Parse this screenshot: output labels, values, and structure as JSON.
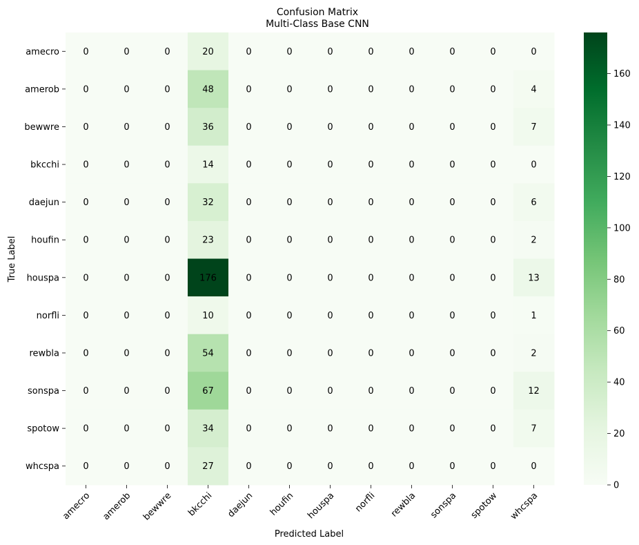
{
  "chart_data": {
    "type": "heatmap",
    "title": "Confusion Matrix",
    "subtitle": "Multi-Class Base CNN",
    "xlabel": "Predicted Label",
    "ylabel": "True Label",
    "x_categories": [
      "amecro",
      "amerob",
      "bewwre",
      "bkcchi",
      "daejun",
      "houfin",
      "houspa",
      "norfli",
      "rewbla",
      "sonspa",
      "spotow",
      "whcspa"
    ],
    "y_categories": [
      "amecro",
      "amerob",
      "bewwre",
      "bkcchi",
      "daejun",
      "houfin",
      "houspa",
      "norfli",
      "rewbla",
      "sonspa",
      "spotow",
      "whcspa"
    ],
    "values": [
      [
        0,
        0,
        0,
        20,
        0,
        0,
        0,
        0,
        0,
        0,
        0,
        0
      ],
      [
        0,
        0,
        0,
        48,
        0,
        0,
        0,
        0,
        0,
        0,
        0,
        4
      ],
      [
        0,
        0,
        0,
        36,
        0,
        0,
        0,
        0,
        0,
        0,
        0,
        7
      ],
      [
        0,
        0,
        0,
        14,
        0,
        0,
        0,
        0,
        0,
        0,
        0,
        0
      ],
      [
        0,
        0,
        0,
        32,
        0,
        0,
        0,
        0,
        0,
        0,
        0,
        6
      ],
      [
        0,
        0,
        0,
        23,
        0,
        0,
        0,
        0,
        0,
        0,
        0,
        2
      ],
      [
        0,
        0,
        0,
        176,
        0,
        0,
        0,
        0,
        0,
        0,
        0,
        13
      ],
      [
        0,
        0,
        0,
        10,
        0,
        0,
        0,
        0,
        0,
        0,
        0,
        1
      ],
      [
        0,
        0,
        0,
        54,
        0,
        0,
        0,
        0,
        0,
        0,
        0,
        2
      ],
      [
        0,
        0,
        0,
        67,
        0,
        0,
        0,
        0,
        0,
        0,
        0,
        12
      ],
      [
        0,
        0,
        0,
        34,
        0,
        0,
        0,
        0,
        0,
        0,
        0,
        7
      ],
      [
        0,
        0,
        0,
        27,
        0,
        0,
        0,
        0,
        0,
        0,
        0,
        0
      ]
    ],
    "colorbar": {
      "min": 0,
      "max": 176,
      "ticks": [
        0,
        20,
        40,
        60,
        80,
        100,
        120,
        140,
        160
      ],
      "colormap": "Greens",
      "low_color": "#f7fcf5",
      "high_color": "#00441b"
    }
  }
}
